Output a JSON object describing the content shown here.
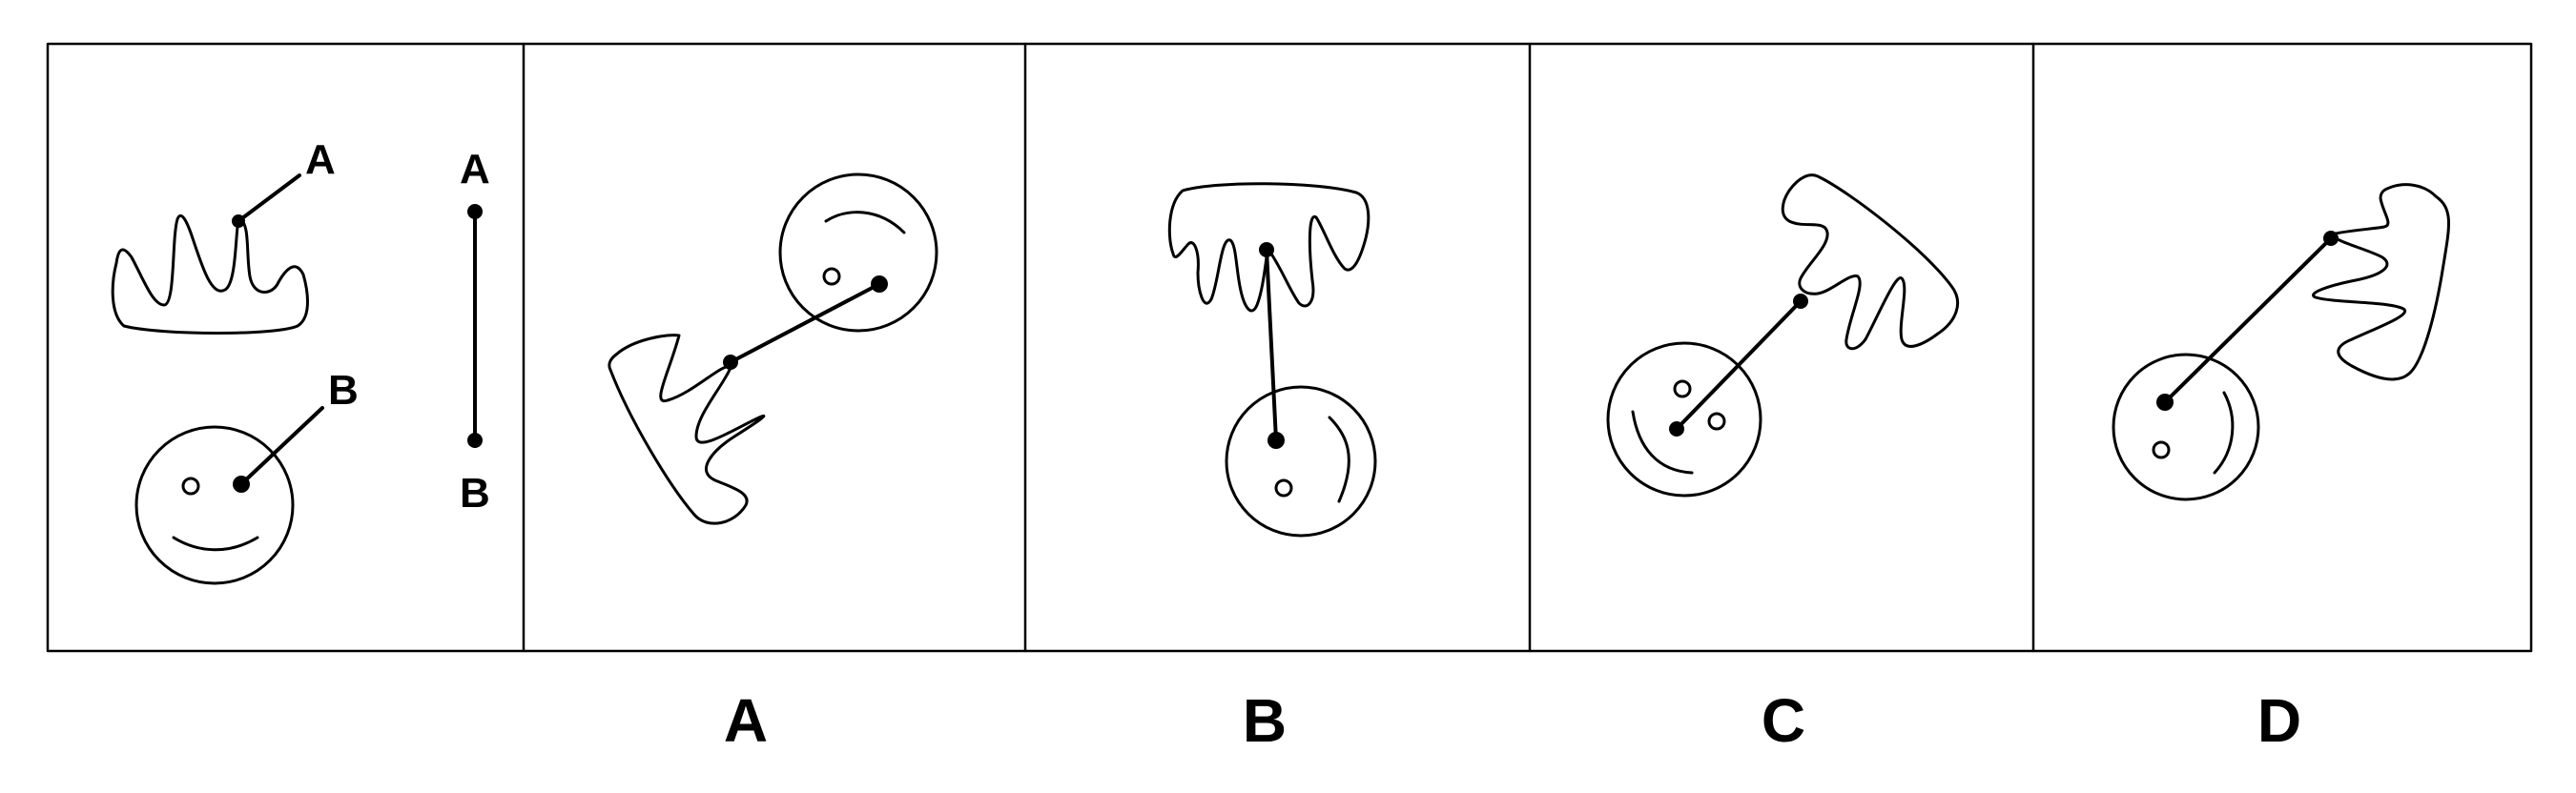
{
  "panel_labels": {
    "reference_a": "A",
    "reference_b": "B",
    "segment_a": "A",
    "segment_b": "B"
  },
  "options": [
    {
      "label": "A"
    },
    {
      "label": "B"
    },
    {
      "label": "C"
    },
    {
      "label": "D"
    }
  ],
  "colors": {
    "stroke": "#000000",
    "background": "#ffffff"
  }
}
